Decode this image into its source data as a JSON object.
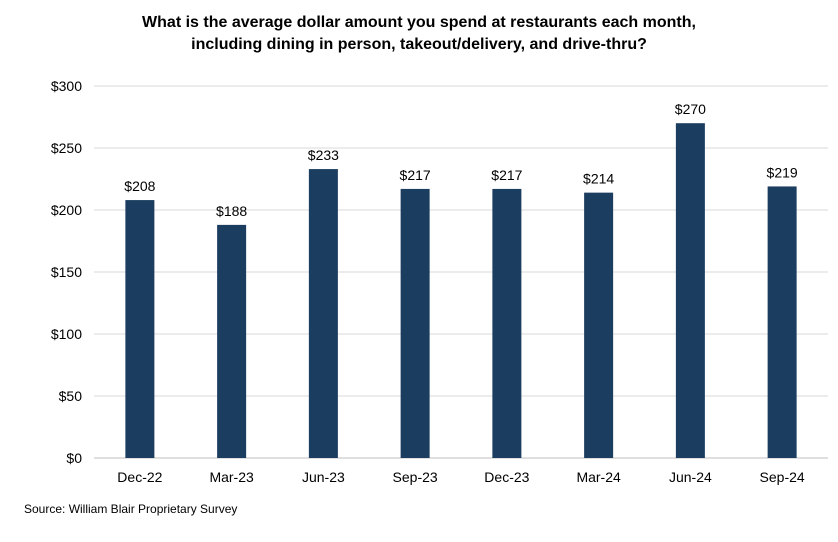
{
  "chart_data": {
    "type": "bar",
    "title_lines": [
      "What is the average dollar amount you spend at restaurants each month,",
      "including dining in person, takeout/delivery, and drive-thru?"
    ],
    "categories": [
      "Dec-22",
      "Mar-23",
      "Jun-23",
      "Sep-23",
      "Dec-23",
      "Mar-24",
      "Jun-24",
      "Sep-24"
    ],
    "values": [
      208,
      188,
      233,
      217,
      217,
      214,
      270,
      219
    ],
    "data_labels": [
      "$208",
      "$188",
      "$233",
      "$217",
      "$217",
      "$214",
      "$270",
      "$219"
    ],
    "y_ticks": [
      "$0",
      "$50",
      "$100",
      "$150",
      "$200",
      "$250",
      "$300"
    ],
    "ylim": [
      0,
      300
    ],
    "xlabel": "",
    "ylabel": "",
    "grid": true,
    "legend": "none",
    "bar_color": "#1b3d5f",
    "grid_color": "#d9d9d9"
  },
  "source": "Source: William Blair Proprietary Survey"
}
